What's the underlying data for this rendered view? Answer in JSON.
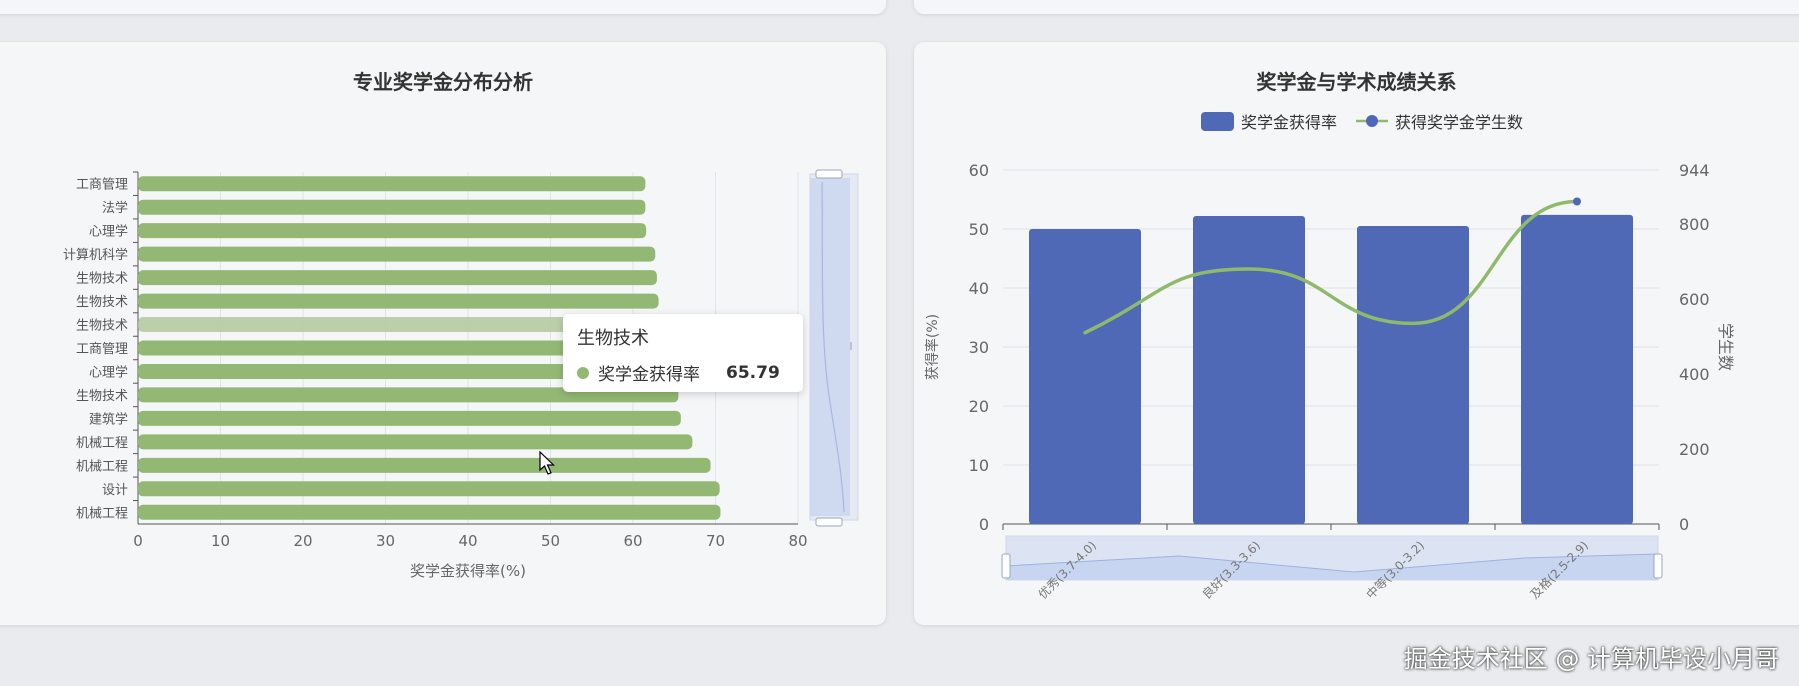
{
  "left_chart": {
    "title": "专业奖学金分布分析",
    "xlabel": "奖学金获得率(%)",
    "tooltip": {
      "title": "生物技术",
      "series": "奖学金获得率",
      "value": "65.79"
    }
  },
  "right_chart": {
    "title": "奖学金与学术成绩关系",
    "legend_bar": "奖学金获得率",
    "legend_line": "获得奖学金学生数",
    "ylabel_left": "获得率(%)",
    "ylabel_right": "学生数"
  },
  "watermark": "掘金技术社区 @ 计算机毕设小月哥",
  "colors": {
    "bar_green": "#93b874",
    "bar_blue": "#5069b6",
    "line_green": "#8fba6c",
    "dot_blue": "#4f67b8"
  },
  "chart_data": [
    {
      "type": "bar",
      "orientation": "horizontal",
      "title": "专业奖学金分布分析",
      "xlabel": "奖学金获得率(%)",
      "ylabel": "",
      "categories": [
        "工商管理",
        "法学",
        "心理学",
        "计算机科学",
        "生物技术",
        "生物技术",
        "生物技术",
        "工商管理",
        "心理学",
        "生物技术",
        "建筑学",
        "机械工程",
        "机械工程",
        "设计",
        "机械工程"
      ],
      "series": [
        {
          "name": "奖学金获得率",
          "values": [
            61.5,
            61.5,
            61.6,
            62.7,
            62.9,
            63.1,
            65.79,
            64.5,
            65.0,
            65.5,
            65.8,
            67.2,
            69.4,
            70.5,
            70.6
          ]
        }
      ],
      "xlim": [
        0,
        80
      ],
      "xticks": [
        "0",
        "10",
        "20",
        "30",
        "40",
        "50",
        "60",
        "70",
        "80"
      ],
      "grid": true,
      "highlighted_index": 6
    },
    {
      "type": "bar",
      "title": "奖学金与学术成绩关系",
      "categories": [
        "优秀(3.7-4.0)",
        "良好(3.3-3.6)",
        "中等(3.0-3.2)",
        "及格(2.5-2.9)"
      ],
      "series": [
        {
          "name": "奖学金获得率",
          "type": "bar",
          "axis": "left",
          "values": [
            50.0,
            52.2,
            50.5,
            52.4
          ]
        },
        {
          "name": "获得奖学金学生数",
          "type": "line",
          "axis": "right",
          "values": [
            510,
            680,
            535,
            860
          ]
        }
      ],
      "ylabel": "获得率(%)",
      "ylabel_right": "学生数",
      "ylim": [
        0,
        60
      ],
      "yticks": [
        "0",
        "10",
        "20",
        "30",
        "40",
        "50",
        "60"
      ],
      "ylim_right": [
        0,
        944
      ],
      "yticks_right": [
        "0",
        "200",
        "400",
        "600",
        "800",
        "944"
      ],
      "legend": "top-center",
      "grid": true
    }
  ]
}
